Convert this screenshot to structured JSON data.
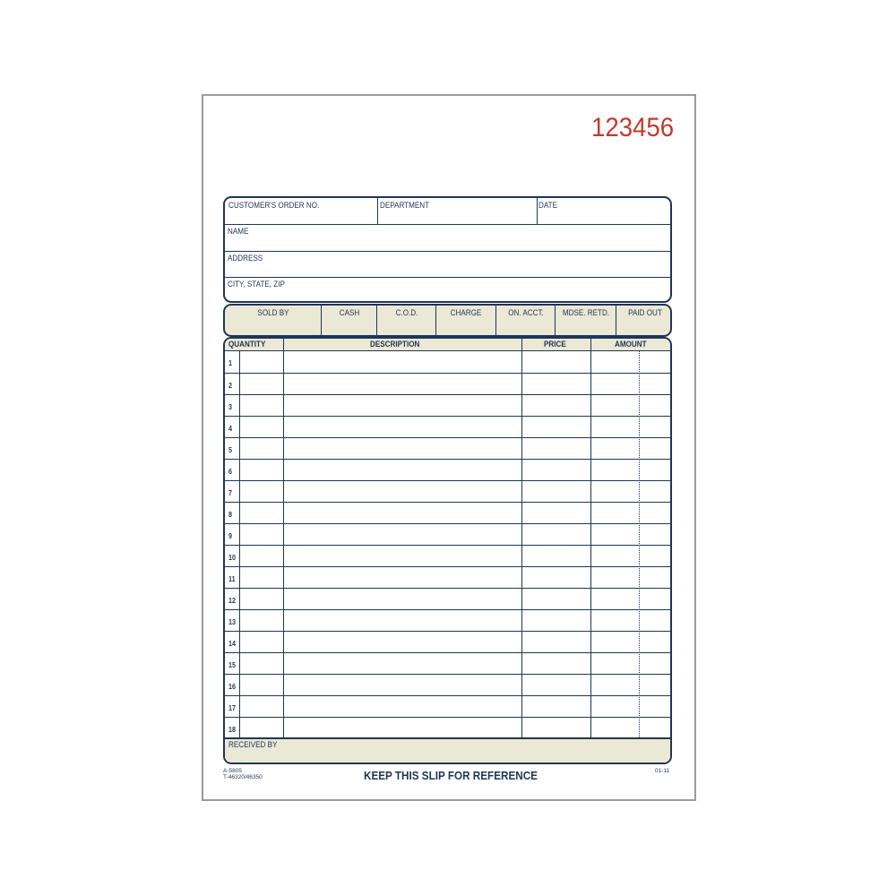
{
  "form_number": "123456",
  "header": {
    "order_no": "CUSTOMER'S ORDER NO.",
    "department": "DEPARTMENT",
    "date": "DATE",
    "name": "NAME",
    "address": "ADDRESS",
    "city": "CITY, STATE, ZIP"
  },
  "status_columns": [
    "SOLD BY",
    "CASH",
    "C.O.D.",
    "CHARGE",
    "ON. ACCT.",
    "MDSE. RETD.",
    "PAID OUT"
  ],
  "table": {
    "headers": {
      "quantity": "QUANTITY",
      "description": "DESCRIPTION",
      "price": "PRICE",
      "amount": "AMOUNT"
    },
    "line_numbers": [
      "1",
      "2",
      "3",
      "4",
      "5",
      "6",
      "7",
      "8",
      "9",
      "10",
      "11",
      "12",
      "13",
      "14",
      "15",
      "16",
      "17",
      "18"
    ]
  },
  "received_by": "RECEIVED BY",
  "footer": {
    "code1": "A-5805",
    "code2": "T-46320/46350",
    "message": "KEEP THIS SLIP FOR REFERENCE",
    "revision": "01-11"
  },
  "colors": {
    "ink": "#1f3556",
    "tan": "#ebe8d6",
    "number": "#c23a2b"
  }
}
